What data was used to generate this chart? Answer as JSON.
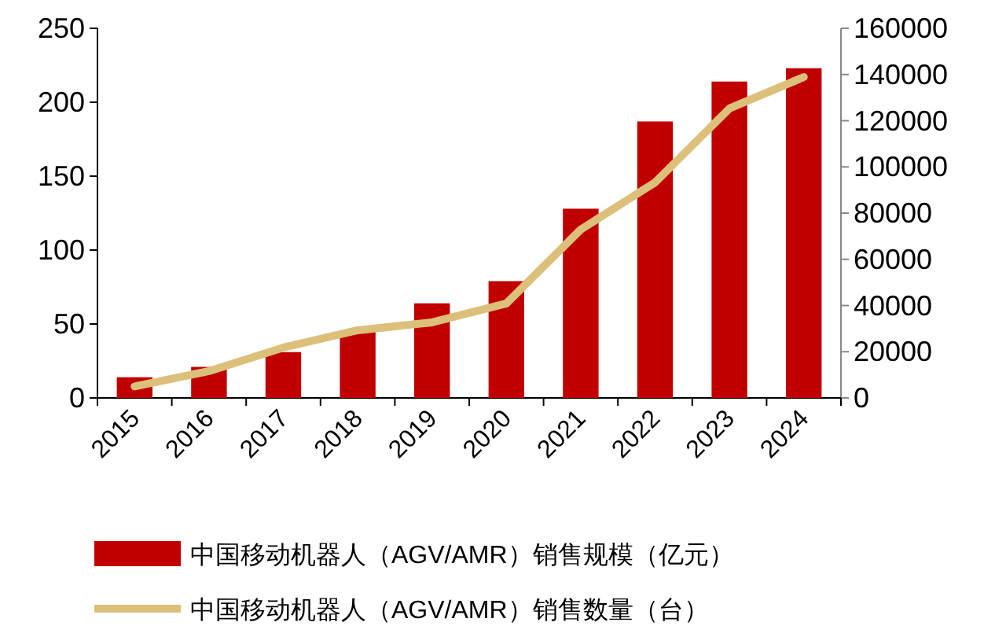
{
  "chart_data": {
    "type": "bar",
    "categories": [
      "2015",
      "2016",
      "2017",
      "2018",
      "2019",
      "2020",
      "2021",
      "2022",
      "2023",
      "2024"
    ],
    "series": [
      {
        "name": "中国移动机器人（AGV/AMR）销售规模（亿元）",
        "color": "#c00000",
        "values": [
          14,
          21,
          31,
          45,
          64,
          79,
          128,
          187,
          214,
          223
        ]
      },
      {
        "name": "中国移动机器人（AGV/AMR）销售数量（台）",
        "type": "line",
        "axis": "y2",
        "color": "#dcc07a",
        "values": [
          5000,
          11600,
          21800,
          29300,
          32700,
          40900,
          72900,
          93300,
          125300,
          138900
        ]
      }
    ],
    "ylim": [
      0,
      250
    ],
    "yticks": [
      0,
      50,
      100,
      150,
      200,
      250
    ],
    "y2lim": [
      0,
      160000
    ],
    "y2ticks": [
      0,
      20000,
      40000,
      60000,
      80000,
      100000,
      120000,
      140000,
      160000
    ],
    "legend": "bottom"
  }
}
